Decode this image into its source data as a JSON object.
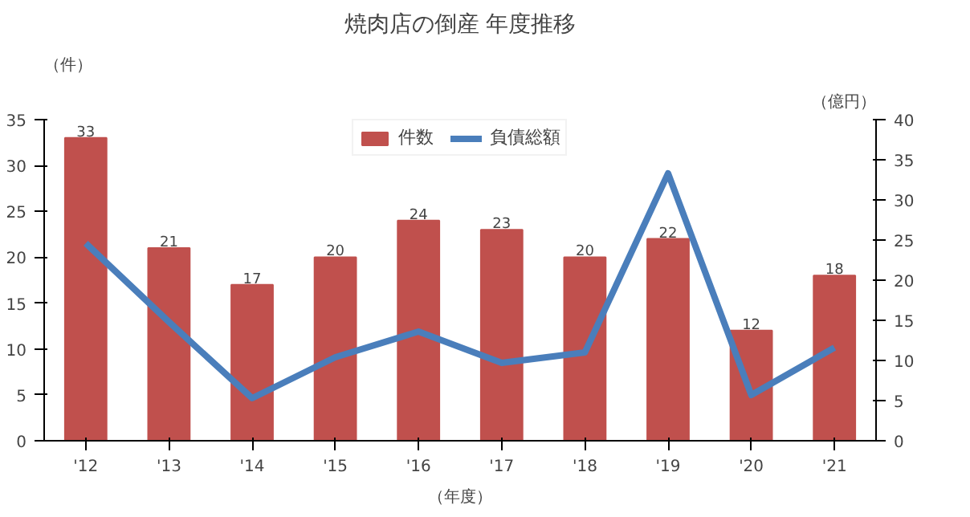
{
  "chart_data": {
    "type": "bar",
    "title": "焼肉店の倒産 年度推移",
    "xlabel": "（年度）",
    "ylabel": "（件）",
    "y2label": "（億円）",
    "categories": [
      "'12",
      "'13",
      "'14",
      "'15",
      "'16",
      "'17",
      "'18",
      "'19",
      "'20",
      "'21"
    ],
    "series": [
      {
        "name": "件数",
        "color": "#c0504d",
        "values": [
          33,
          21,
          17,
          20,
          24,
          23,
          20,
          22,
          12,
          18
        ],
        "value_labels": [
          "33",
          "21",
          "17",
          "20",
          "24",
          "23",
          "20",
          "22",
          "12",
          "18"
        ]
      },
      {
        "name": "負債総額",
        "type": "line",
        "axis": "y2",
        "color": "#4a7ebb",
        "values": [
          24.6,
          14.8,
          5.3,
          10.4,
          13.6,
          9.7,
          11,
          33.3,
          5.7,
          11.6
        ]
      }
    ],
    "ylim": [
      0,
      35
    ],
    "yticks": [
      0,
      5,
      10,
      15,
      20,
      25,
      30,
      35
    ],
    "y2lim": [
      0,
      40
    ],
    "y2ticks": [
      0,
      5,
      10,
      15,
      20,
      25,
      30,
      35,
      40
    ],
    "legend": "top",
    "grid": false,
    "marker": "none"
  }
}
